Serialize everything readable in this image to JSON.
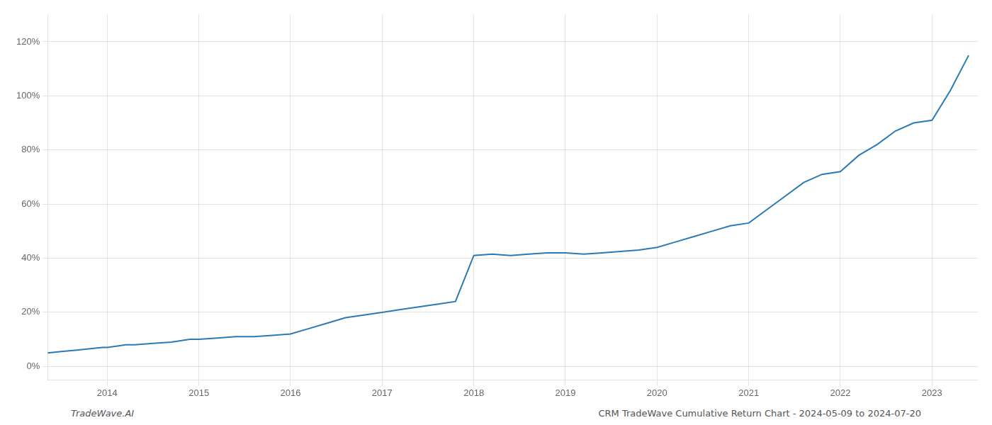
{
  "chart_data": {
    "type": "line",
    "x": [
      2013.35,
      2013.5,
      2013.65,
      2013.8,
      2013.95,
      2014.0,
      2014.1,
      2014.2,
      2014.3,
      2014.5,
      2014.7,
      2014.9,
      2015.0,
      2015.2,
      2015.4,
      2015.6,
      2015.8,
      2016.0,
      2016.2,
      2016.4,
      2016.6,
      2016.8,
      2017.0,
      2017.2,
      2017.4,
      2017.6,
      2017.8,
      2018.0,
      2018.2,
      2018.4,
      2018.6,
      2018.8,
      2019.0,
      2019.2,
      2019.4,
      2019.6,
      2019.8,
      2020.0,
      2020.2,
      2020.4,
      2020.6,
      2020.8,
      2021.0,
      2021.2,
      2021.4,
      2021.6,
      2021.8,
      2022.0,
      2022.2,
      2022.4,
      2022.6,
      2022.8,
      2023.0,
      2023.2,
      2023.4
    ],
    "values": [
      5,
      5.5,
      6,
      6.5,
      7,
      7,
      7.5,
      8,
      8,
      8.5,
      9,
      10,
      10,
      10.5,
      11,
      11,
      11.5,
      12,
      14,
      16,
      18,
      19,
      20,
      21,
      22,
      23,
      24,
      41,
      41.5,
      41,
      41.5,
      42,
      42,
      41.5,
      42,
      42.5,
      43,
      44,
      46,
      48,
      50,
      52,
      53,
      58,
      63,
      68,
      71,
      72,
      78,
      82,
      87,
      90,
      91,
      102,
      115
    ],
    "color": "#2a7ab5",
    "xlim": [
      2013.35,
      2023.5
    ],
    "ylim": [
      -5,
      130
    ],
    "xticks": [
      2014,
      2015,
      2016,
      2017,
      2018,
      2019,
      2020,
      2021,
      2022,
      2023
    ],
    "yticks": [
      {
        "value": 0,
        "label": "0%"
      },
      {
        "value": 20,
        "label": "20%"
      },
      {
        "value": 40,
        "label": "40%"
      },
      {
        "value": 60,
        "label": "60%"
      },
      {
        "value": 80,
        "label": "80%"
      },
      {
        "value": 100,
        "label": "100%"
      },
      {
        "value": 120,
        "label": "120%"
      }
    ],
    "grid": true,
    "annotations": [
      "TradeWave.AI",
      "CRM TradeWave Cumulative Return Chart - 2024-05-09 to 2024-07-20"
    ]
  }
}
